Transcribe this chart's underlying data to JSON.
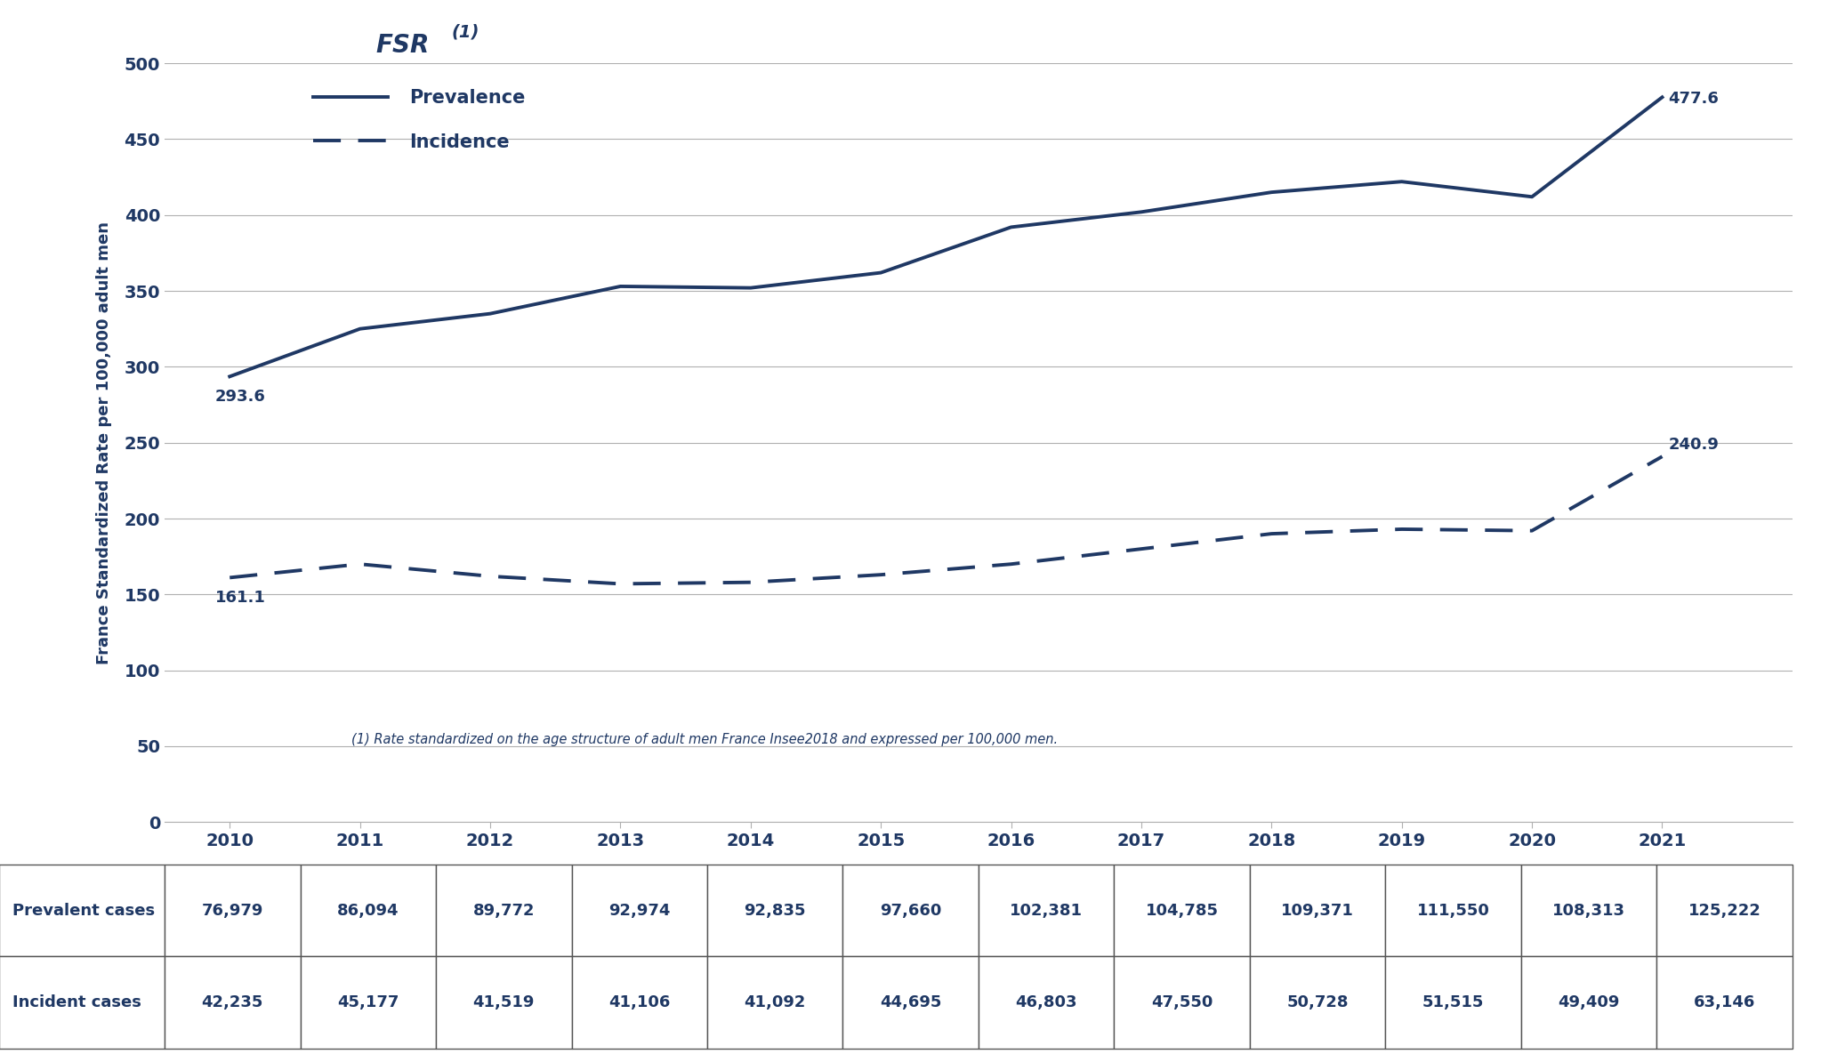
{
  "years": [
    2010,
    2011,
    2012,
    2013,
    2014,
    2015,
    2016,
    2017,
    2018,
    2019,
    2020,
    2021
  ],
  "prevalence": [
    293.6,
    325.0,
    335.0,
    353.0,
    352.0,
    362.0,
    392.0,
    402.0,
    415.0,
    422.0,
    412.0,
    477.6
  ],
  "incidence": [
    161.1,
    170.0,
    162.0,
    157.0,
    158.0,
    163.0,
    170.0,
    180.0,
    190.0,
    193.0,
    192.0,
    240.9
  ],
  "prevalent_cases": [
    "76,979",
    "86,094",
    "89,772",
    "92,974",
    "92,835",
    "97,660",
    "102,381",
    "104,785",
    "109,371",
    "111,550",
    "108,313",
    "125,222"
  ],
  "incident_cases": [
    "42,235",
    "45,177",
    "41,519",
    "41,106",
    "41,092",
    "44,695",
    "46,803",
    "47,550",
    "50,728",
    "51,515",
    "49,409",
    "63,146"
  ],
  "ylabel": "France Standardized Rate per 100,000 adult men",
  "ylim": [
    0,
    500
  ],
  "yticks": [
    0,
    50,
    100,
    150,
    200,
    250,
    300,
    350,
    400,
    450,
    500
  ],
  "line_color": "#1F3864",
  "footnote": "(1) Rate standardized on the age structure of adult men France Insee2018 and expressed per 100,000 men.",
  "legend_prevalence": "Prevalence",
  "legend_incidence": "Incidence",
  "table_row1_label": "Prevalent cases",
  "table_row2_label": "Incident cases",
  "background_color": "#ffffff",
  "grid_color": "#b0b0b0",
  "prevalence_first_label": "293.6",
  "prevalence_last_label": "477.6",
  "incidence_first_label": "161.1",
  "incidence_last_label": "240.9"
}
